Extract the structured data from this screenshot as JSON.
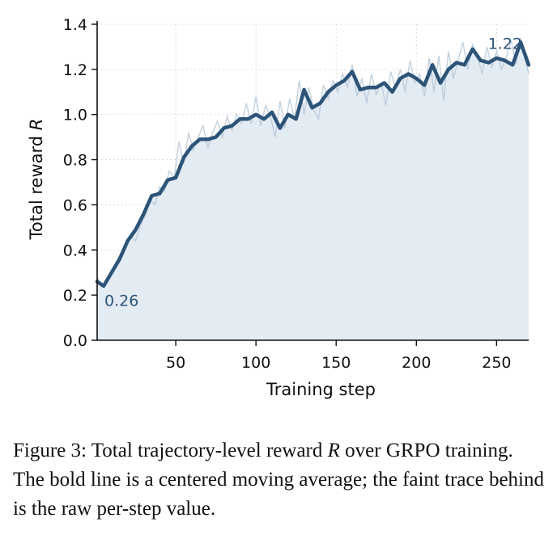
{
  "chart_data": {
    "type": "line",
    "title": "",
    "xlabel": "Training step",
    "ylabel": "Total reward R",
    "xlim": [
      1,
      270
    ],
    "ylim": [
      0.0,
      1.4
    ],
    "x_ticks": [
      50,
      100,
      150,
      200,
      250
    ],
    "y_ticks": [
      0.0,
      0.2,
      0.4,
      0.6,
      0.8,
      1.0,
      1.2,
      1.4
    ],
    "x_tick_labels": [
      "50",
      "100",
      "150",
      "200",
      "250"
    ],
    "y_tick_labels": [
      "0.0",
      "0.2",
      "0.4",
      "0.6",
      "0.8",
      "1.0",
      "1.2",
      "1.4"
    ],
    "grid": true,
    "colors": {
      "line": "#2c5478",
      "raw": "#b3c6d6",
      "fill": "#e3ebf3",
      "grid": "#d6d6d6"
    },
    "series": [
      {
        "name": "",
        "role": "moving average",
        "x": [
          1,
          5,
          10,
          15,
          20,
          25,
          30,
          35,
          40,
          45,
          50,
          55,
          60,
          65,
          70,
          75,
          80,
          85,
          90,
          95,
          100,
          105,
          110,
          115,
          120,
          125,
          130,
          135,
          140,
          145,
          150,
          155,
          160,
          165,
          170,
          175,
          180,
          185,
          190,
          195,
          200,
          205,
          210,
          215,
          220,
          225,
          230,
          235,
          240,
          245,
          250,
          255,
          260,
          265,
          270
        ],
        "values": [
          0.26,
          0.24,
          0.3,
          0.36,
          0.44,
          0.49,
          0.56,
          0.64,
          0.65,
          0.71,
          0.72,
          0.81,
          0.86,
          0.89,
          0.89,
          0.9,
          0.94,
          0.95,
          0.98,
          0.98,
          1.0,
          0.98,
          1.01,
          0.94,
          1.0,
          0.98,
          1.11,
          1.03,
          1.05,
          1.1,
          1.13,
          1.15,
          1.19,
          1.11,
          1.12,
          1.12,
          1.14,
          1.1,
          1.16,
          1.18,
          1.16,
          1.13,
          1.22,
          1.14,
          1.2,
          1.23,
          1.22,
          1.29,
          1.24,
          1.23,
          1.25,
          1.24,
          1.22,
          1.32,
          1.22
        ]
      },
      {
        "name": "",
        "role": "raw per-step",
        "x": [
          1,
          4,
          7,
          10,
          13,
          16,
          19,
          22,
          25,
          28,
          31,
          34,
          37,
          40,
          43,
          46,
          49,
          52,
          55,
          58,
          61,
          64,
          67,
          70,
          73,
          76,
          79,
          82,
          85,
          88,
          91,
          94,
          97,
          100,
          103,
          106,
          109,
          112,
          115,
          118,
          121,
          124,
          127,
          130,
          133,
          136,
          139,
          142,
          145,
          148,
          151,
          154,
          157,
          160,
          163,
          166,
          169,
          172,
          175,
          178,
          181,
          184,
          187,
          190,
          193,
          196,
          199,
          202,
          205,
          208,
          211,
          214,
          217,
          220,
          223,
          226,
          229,
          232,
          235,
          238,
          241,
          244,
          247,
          250,
          253,
          256,
          259,
          262,
          265,
          268,
          270
        ],
        "values": [
          0.28,
          0.24,
          0.27,
          0.3,
          0.34,
          0.38,
          0.42,
          0.46,
          0.44,
          0.51,
          0.55,
          0.62,
          0.6,
          0.68,
          0.66,
          0.75,
          0.72,
          0.88,
          0.78,
          0.92,
          0.84,
          0.9,
          0.95,
          0.85,
          0.92,
          0.97,
          0.9,
          0.99,
          0.93,
          1.0,
          0.96,
          1.05,
          0.96,
          1.08,
          0.95,
          1.04,
          0.99,
          0.9,
          1.06,
          0.94,
          1.07,
          0.98,
          1.15,
          1.0,
          1.12,
          1.02,
          0.98,
          1.13,
          1.07,
          1.15,
          1.1,
          1.18,
          1.12,
          1.22,
          1.08,
          1.16,
          1.05,
          1.18,
          1.09,
          1.14,
          1.04,
          1.19,
          1.12,
          1.2,
          1.1,
          1.24,
          1.14,
          1.18,
          1.08,
          1.25,
          1.1,
          1.26,
          1.06,
          1.28,
          1.16,
          1.24,
          1.32,
          1.2,
          1.31,
          1.26,
          1.18,
          1.3,
          1.21,
          1.28,
          1.2,
          1.25,
          1.33,
          1.22,
          1.34,
          1.24,
          1.18
        ]
      }
    ],
    "annotations": [
      {
        "text": "0.26",
        "x": 1,
        "y": 0.26
      },
      {
        "text": "1.22",
        "x": 270,
        "y": 1.22
      }
    ]
  },
  "caption": {
    "prefix": "Figure 3: Total trajectory-level reward ",
    "symbol": "R",
    "suffix": " over GRPO training. The bold line is a centered moving average; the faint trace behind is the raw per-step value."
  }
}
